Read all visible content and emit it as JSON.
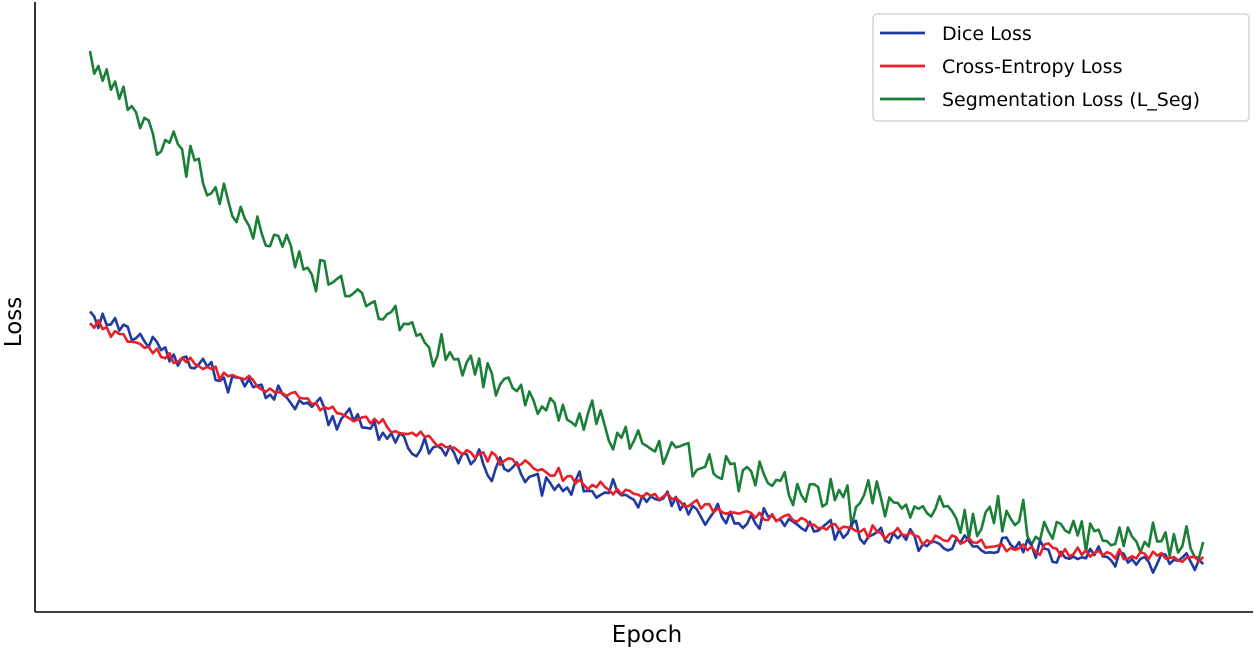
{
  "chart_data": {
    "type": "line",
    "title": "",
    "xlabel": "Epoch",
    "ylabel": "Loss",
    "x_ticks_shown": false,
    "y_ticks_shown": false,
    "grid": false,
    "legend_position": "top-right",
    "x_range": [
      0,
      400
    ],
    "y_range": [
      0,
      1.05
    ],
    "noise_model": "values are smooth underlying trends; rendered curves add epoch-to-epoch jitter of the amplitude listed per series",
    "series": [
      {
        "name": "Dice Loss",
        "color": "#1f3aa0",
        "noise": 0.012,
        "x": [
          0,
          20,
          40,
          60,
          80,
          100,
          120,
          140,
          160,
          180,
          200,
          220,
          240,
          260,
          280,
          300,
          320,
          340,
          360,
          380,
          400
        ],
        "values": [
          0.52,
          0.47,
          0.42,
          0.38,
          0.34,
          0.305,
          0.27,
          0.245,
          0.215,
          0.19,
          0.17,
          0.15,
          0.135,
          0.118,
          0.105,
          0.095,
          0.085,
          0.075,
          0.068,
          0.06,
          0.055
        ]
      },
      {
        "name": "Cross-Entropy Loss",
        "color": "#e8202a",
        "noise": 0.006,
        "x": [
          0,
          20,
          40,
          60,
          80,
          100,
          120,
          140,
          160,
          180,
          200,
          220,
          240,
          260,
          280,
          300,
          320,
          340,
          360,
          380,
          400
        ],
        "values": [
          0.5,
          0.46,
          0.42,
          0.385,
          0.35,
          0.32,
          0.285,
          0.255,
          0.23,
          0.2,
          0.18,
          0.16,
          0.142,
          0.125,
          0.113,
          0.1,
          0.09,
          0.08,
          0.072,
          0.065,
          0.06
        ]
      },
      {
        "name": "Segmentation Loss (L_Seg)",
        "color": "#1a7f37",
        "noise": 0.02,
        "x": [
          0,
          20,
          40,
          60,
          80,
          100,
          120,
          140,
          160,
          180,
          200,
          220,
          240,
          260,
          280,
          300,
          320,
          340,
          360,
          380,
          400
        ],
        "values": [
          1.0,
          0.87,
          0.77,
          0.68,
          0.6,
          0.53,
          0.465,
          0.41,
          0.36,
          0.315,
          0.28,
          0.245,
          0.215,
          0.19,
          0.17,
          0.152,
          0.135,
          0.122,
          0.11,
          0.1,
          0.092
        ]
      }
    ]
  }
}
